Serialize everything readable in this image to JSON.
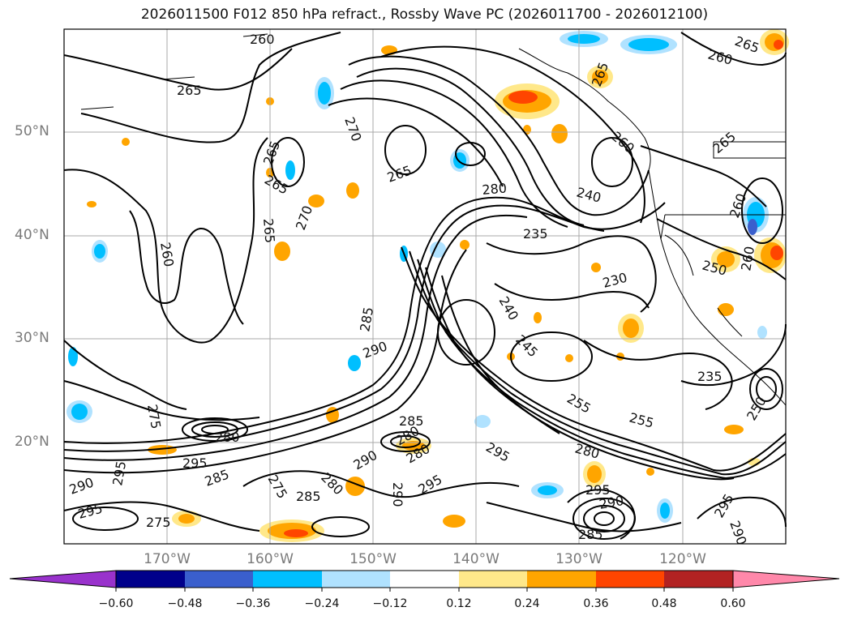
{
  "title": "2026011500 F012 850 hPa refract., Rossby Wave PC (2026011700 - 2026012100)",
  "lat_labels": [
    "50°N",
    "40°N",
    "30°N",
    "20°N"
  ],
  "lon_labels": [
    "170°W",
    "160°W",
    "150°W",
    "140°W",
    "130°W",
    "120°W"
  ],
  "colorbar": {
    "ticks": [
      "−0.60",
      "−0.48",
      "−0.36",
      "−0.24",
      "−0.12",
      "0.12",
      "0.24",
      "0.36",
      "0.48",
      "0.60"
    ],
    "colors": [
      "#9932cc",
      "#00008b",
      "#3a5fcd",
      "#00bfff",
      "#b0e2ff",
      "#ffffff",
      "#ffe88a",
      "#ffa500",
      "#ff4500",
      "#b22222",
      "#ff88aa"
    ]
  },
  "contour_labels": [
    "260",
    "265",
    "265",
    "270",
    "265",
    "265",
    "270",
    "265",
    "260",
    "275",
    "280",
    "285",
    "290",
    "295",
    "290",
    "285",
    "280",
    "275",
    "295",
    "290",
    "295",
    "285",
    "280",
    "275",
    "280",
    "285",
    "290",
    "295",
    "280",
    "240",
    "235",
    "230",
    "240",
    "245",
    "255",
    "260",
    "265",
    "280",
    "295",
    "290",
    "285",
    "295",
    "260",
    "265",
    "260",
    "255",
    "250",
    "260",
    "235",
    "250",
    "295",
    "290",
    "265"
  ]
}
